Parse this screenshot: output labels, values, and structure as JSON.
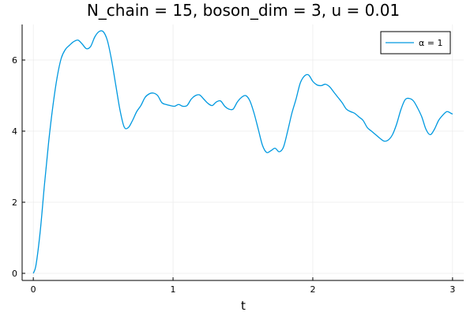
{
  "chart_data": {
    "type": "line",
    "title": "N_chain = 15, boson_dim = 3, u = 0.01",
    "xlabel": "t",
    "ylabel": "",
    "xlim": [
      -0.08,
      3.08
    ],
    "ylim": [
      -0.2,
      7.0
    ],
    "xticks": [
      0,
      1,
      2,
      3
    ],
    "xtick_labels": [
      "0",
      "1",
      "2",
      "3"
    ],
    "yticks": [
      0,
      2,
      4,
      6
    ],
    "ytick_labels": [
      "0",
      "2",
      "4",
      "6"
    ],
    "grid": true,
    "legend_position": "top-right",
    "series": [
      {
        "name": "α = 1",
        "color": "#0099e0",
        "x": [
          0.0,
          0.02,
          0.05,
          0.08,
          0.11,
          0.14,
          0.17,
          0.2,
          0.23,
          0.26,
          0.29,
          0.32,
          0.35,
          0.38,
          0.41,
          0.44,
          0.47,
          0.5,
          0.53,
          0.56,
          0.59,
          0.62,
          0.65,
          0.68,
          0.71,
          0.74,
          0.77,
          0.8,
          0.83,
          0.86,
          0.89,
          0.92,
          0.95,
          0.98,
          1.01,
          1.04,
          1.07,
          1.1,
          1.13,
          1.16,
          1.19,
          1.22,
          1.25,
          1.28,
          1.31,
          1.34,
          1.37,
          1.4,
          1.43,
          1.46,
          1.49,
          1.52,
          1.55,
          1.58,
          1.61,
          1.64,
          1.67,
          1.7,
          1.73,
          1.76,
          1.79,
          1.82,
          1.85,
          1.88,
          1.91,
          1.94,
          1.97,
          2.0,
          2.03,
          2.06,
          2.09,
          2.12,
          2.15,
          2.18,
          2.21,
          2.24,
          2.27,
          2.3,
          2.33,
          2.36,
          2.39,
          2.42,
          2.45,
          2.48,
          2.51,
          2.54,
          2.57,
          2.6,
          2.63,
          2.66,
          2.69,
          2.72,
          2.75,
          2.78,
          2.81,
          2.84,
          2.87,
          2.9,
          2.93,
          2.96,
          2.99,
          3.0
        ],
        "y": [
          0.0,
          0.25,
          1.2,
          2.5,
          3.7,
          4.7,
          5.5,
          6.05,
          6.3,
          6.42,
          6.52,
          6.56,
          6.45,
          6.32,
          6.38,
          6.65,
          6.8,
          6.8,
          6.55,
          6.0,
          5.3,
          4.6,
          4.12,
          4.1,
          4.3,
          4.55,
          4.72,
          4.95,
          5.05,
          5.07,
          5.0,
          4.8,
          4.75,
          4.72,
          4.7,
          4.75,
          4.7,
          4.72,
          4.9,
          5.0,
          5.02,
          4.9,
          4.78,
          4.72,
          4.82,
          4.85,
          4.7,
          4.62,
          4.62,
          4.82,
          4.95,
          5.0,
          4.85,
          4.5,
          4.05,
          3.6,
          3.4,
          3.45,
          3.52,
          3.42,
          3.55,
          4.0,
          4.5,
          4.9,
          5.35,
          5.55,
          5.58,
          5.4,
          5.3,
          5.28,
          5.32,
          5.25,
          5.1,
          4.95,
          4.8,
          4.62,
          4.55,
          4.5,
          4.4,
          4.3,
          4.1,
          4.0,
          3.9,
          3.8,
          3.72,
          3.75,
          3.9,
          4.2,
          4.6,
          4.88,
          4.92,
          4.85,
          4.65,
          4.4,
          4.05,
          3.9,
          4.05,
          4.3,
          4.45,
          4.55,
          4.5,
          4.48
        ]
      }
    ]
  }
}
